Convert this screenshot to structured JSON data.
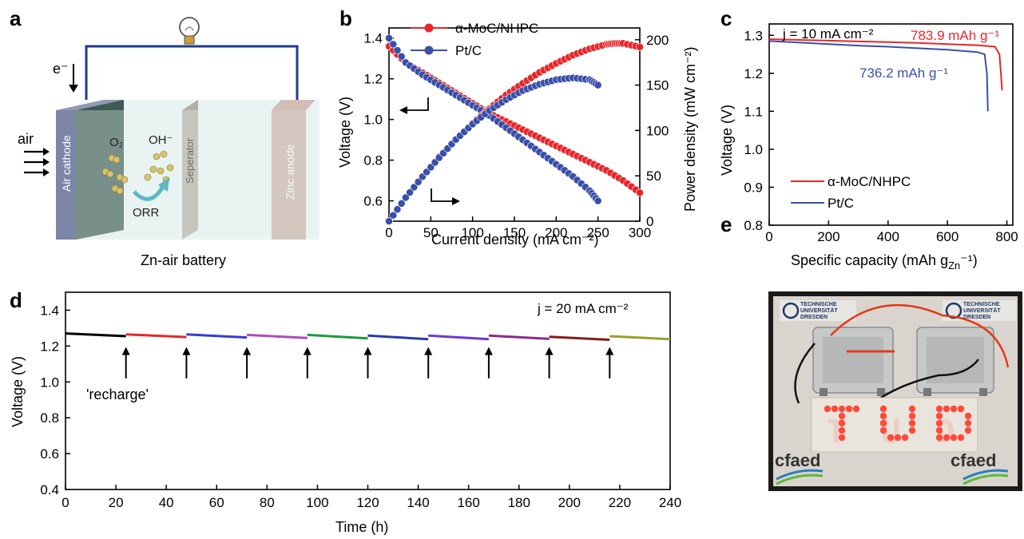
{
  "panel_labels": [
    "a",
    "b",
    "c",
    "d",
    "e"
  ],
  "panel_a": {
    "caption": "Zn-air battery",
    "labels": {
      "electron": "e⁻",
      "air": "air",
      "cathode": "Air cathode",
      "o2": "O₂",
      "oh": "OH⁻",
      "separator": "Seperator",
      "anode": "Zinc anode",
      "orr": "ORR"
    }
  },
  "panel_e": {
    "display_text": "T U D",
    "logos": [
      "cfaed"
    ],
    "logo_text": [
      "TECHNISCHE",
      "UNIVERSITÄT",
      "DRESDEN"
    ],
    "colors": {
      "led": "#ff4a3a",
      "board": "#e9e4dc",
      "wire_red": "#e23a1a",
      "wire_black": "#111111"
    }
  },
  "chart_data": [
    {
      "id": "b",
      "type": "line",
      "xlabel": "Current density (mA cm⁻²)",
      "ylabel": "Voltage (V)",
      "y2label": "Power density (mW cm⁻²)",
      "xlim": [
        0,
        300
      ],
      "ylim": [
        0.5,
        1.45
      ],
      "y2lim": [
        0,
        213
      ],
      "xticks": [
        "0",
        "50",
        "100",
        "150",
        "200",
        "250",
        "300"
      ],
      "yticks": [
        "0.6",
        "0.8",
        "1.0",
        "1.2",
        "1.4"
      ],
      "y2ticks": [
        "0",
        "50",
        "100",
        "150",
        "200"
      ],
      "legend_position": "top-center",
      "colors": {
        "red": "#e8262a",
        "blue": "#3a4fa8"
      },
      "series": [
        {
          "name": "α-MoC/NHPC",
          "axis": "left",
          "color": "red",
          "x": [
            0,
            20,
            40,
            60,
            80,
            100,
            120,
            140,
            160,
            180,
            200,
            220,
            240,
            260,
            280,
            300
          ],
          "y": [
            1.36,
            1.28,
            1.23,
            1.18,
            1.13,
            1.08,
            1.03,
            0.99,
            0.95,
            0.91,
            0.87,
            0.83,
            0.79,
            0.75,
            0.7,
            0.64
          ]
        },
        {
          "name": "Pt/C",
          "axis": "left",
          "color": "blue",
          "x": [
            0,
            20,
            40,
            60,
            80,
            100,
            120,
            140,
            160,
            180,
            200,
            220,
            240,
            250
          ],
          "y": [
            1.4,
            1.28,
            1.22,
            1.17,
            1.12,
            1.07,
            1.02,
            0.96,
            0.9,
            0.84,
            0.78,
            0.72,
            0.65,
            0.6
          ]
        },
        {
          "name": "α-MoC/NHPC",
          "axis": "right",
          "color": "red",
          "x": [
            0,
            20,
            40,
            60,
            80,
            100,
            120,
            140,
            160,
            180,
            200,
            220,
            240,
            260,
            270,
            280,
            300
          ],
          "y": [
            0,
            26,
            49,
            71,
            90,
            108,
            124,
            139,
            152,
            164,
            174,
            183,
            190,
            195,
            196,
            196,
            192
          ]
        },
        {
          "name": "Pt/C",
          "axis": "right",
          "color": "blue",
          "x": [
            0,
            20,
            40,
            60,
            80,
            100,
            120,
            140,
            160,
            180,
            200,
            220,
            240,
            250
          ],
          "y": [
            0,
            26,
            49,
            70,
            90,
            107,
            122,
            134,
            144,
            151,
            156,
            158,
            156,
            150
          ]
        }
      ],
      "annotations": []
    },
    {
      "id": "c",
      "type": "line",
      "xlabel": "Specific capacity (mAh g",
      "xlabel_sub": "Zn",
      "xlabel_end": "⁻¹)",
      "ylabel": "Voltage (V)",
      "xlim": [
        0,
        820
      ],
      "ylim": [
        0.8,
        1.33
      ],
      "xticks": [
        "0",
        "200",
        "400",
        "600",
        "800"
      ],
      "yticks": [
        "0.8",
        "0.9",
        "1.0",
        "1.1",
        "1.2",
        "1.3"
      ],
      "legend_position": "bottom-left",
      "condition": "j = 10 mA cm⁻²",
      "series": [
        {
          "name": "α-MoC/NHPC",
          "color": "#e8262a",
          "x": [
            0,
            100,
            200,
            300,
            400,
            500,
            600,
            700,
            760,
            775,
            780,
            783.9
          ],
          "y": [
            1.29,
            1.288,
            1.286,
            1.284,
            1.282,
            1.28,
            1.277,
            1.274,
            1.27,
            1.25,
            1.2,
            1.155
          ]
        },
        {
          "name": "Pt/C",
          "color": "#3a4fa8",
          "x": [
            0,
            100,
            200,
            300,
            400,
            500,
            600,
            700,
            725,
            733,
            736.2
          ],
          "y": [
            1.285,
            1.281,
            1.277,
            1.273,
            1.27,
            1.266,
            1.262,
            1.256,
            1.25,
            1.2,
            1.1
          ]
        }
      ],
      "annotations": [
        {
          "text": "783.9 mAh g⁻¹",
          "color": "#e8262a"
        },
        {
          "text": "736.2 mAh g⁻¹",
          "color": "#3a4fa8"
        }
      ]
    },
    {
      "id": "d",
      "type": "line",
      "xlabel": "Time (h)",
      "ylabel": "Voltage (V)",
      "xlim": [
        0,
        240
      ],
      "ylim": [
        0.4,
        1.5
      ],
      "xticks": [
        "0",
        "20",
        "40",
        "60",
        "80",
        "100",
        "120",
        "140",
        "160",
        "180",
        "200",
        "220",
        "240"
      ],
      "yticks": [
        "0.4",
        "0.6",
        "0.8",
        "1.0",
        "1.2",
        "1.4"
      ],
      "condition": "j = 20 mA cm⁻²",
      "recharge_label": "'recharge'",
      "recharge_times": [
        24,
        48,
        72,
        96,
        120,
        144,
        168,
        192,
        216
      ],
      "segments": [
        {
          "x": [
            0,
            24
          ],
          "y": [
            1.27,
            1.255
          ],
          "color": "#000000"
        },
        {
          "x": [
            24,
            48
          ],
          "y": [
            1.265,
            1.25
          ],
          "color": "#e8262a"
        },
        {
          "x": [
            48,
            72
          ],
          "y": [
            1.265,
            1.248
          ],
          "color": "#2f3fd0"
        },
        {
          "x": [
            72,
            96
          ],
          "y": [
            1.262,
            1.245
          ],
          "color": "#b04ab8"
        },
        {
          "x": [
            96,
            120
          ],
          "y": [
            1.262,
            1.243
          ],
          "color": "#1e9a3a"
        },
        {
          "x": [
            120,
            144
          ],
          "y": [
            1.258,
            1.238
          ],
          "color": "#2a3aa8"
        },
        {
          "x": [
            144,
            168
          ],
          "y": [
            1.258,
            1.238
          ],
          "color": "#6a3ad0"
        },
        {
          "x": [
            168,
            192
          ],
          "y": [
            1.258,
            1.24
          ],
          "color": "#8a2a8a"
        },
        {
          "x": [
            192,
            216
          ],
          "y": [
            1.252,
            1.235
          ],
          "color": "#8a1a1a"
        },
        {
          "x": [
            216,
            240
          ],
          "y": [
            1.255,
            1.238
          ],
          "color": "#9aa030"
        }
      ]
    }
  ]
}
